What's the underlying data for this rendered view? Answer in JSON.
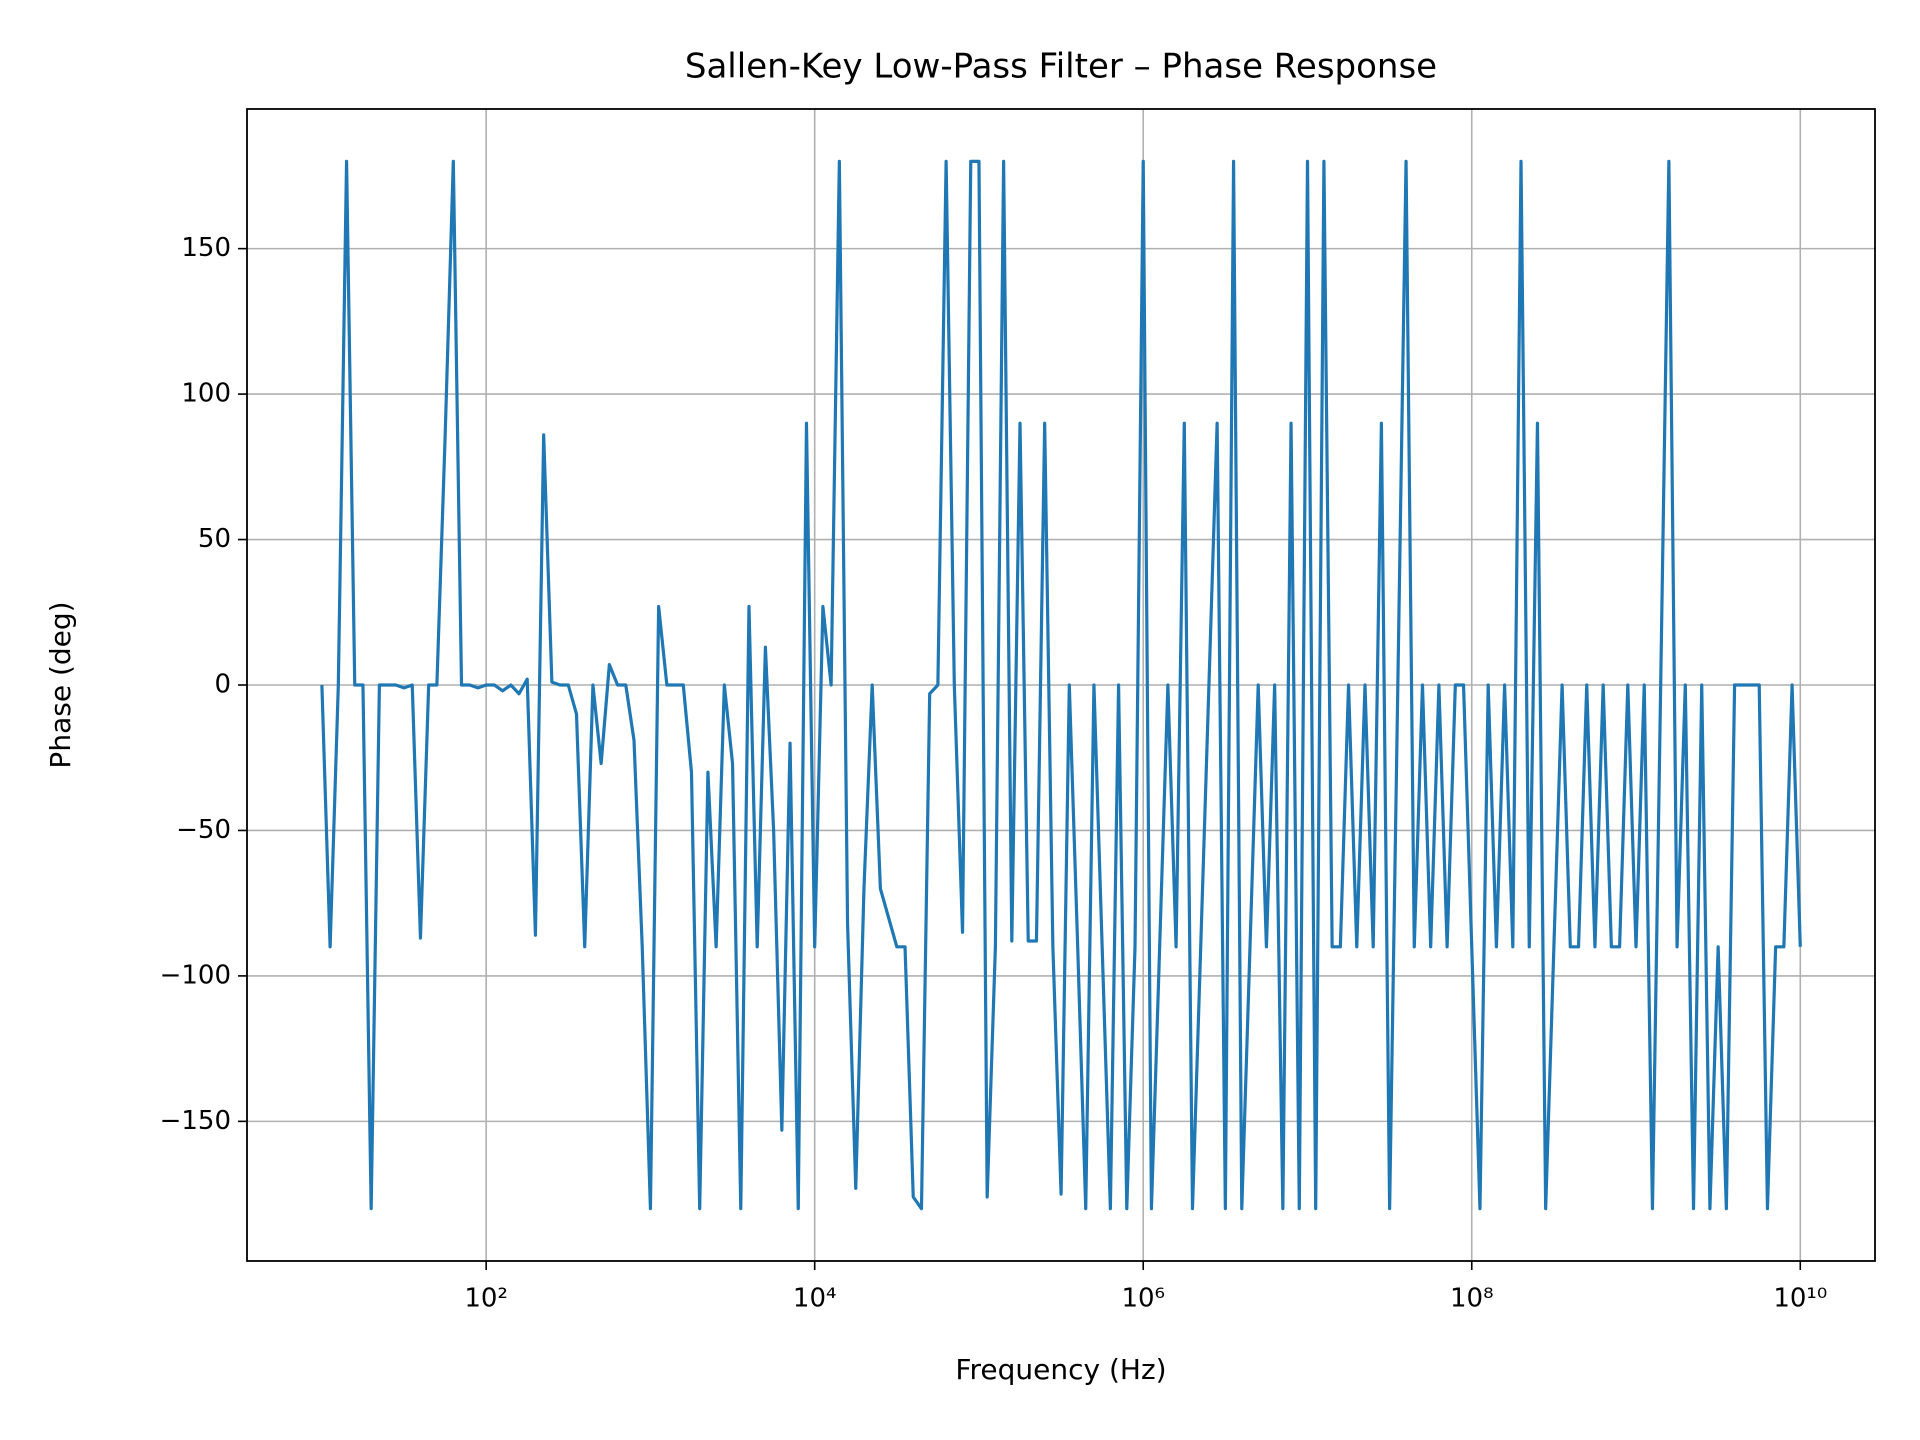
{
  "chart_data": {
    "type": "line",
    "title": "Sallen-Key Low-Pass Filter – Phase Response",
    "xlabel": "Frequency (Hz)",
    "ylabel": "Phase (deg)",
    "xscale": "log",
    "grid": true,
    "color": "#1f77b4",
    "xlim": [
      3.5,
      28500000000.0
    ],
    "ylim": [
      -198,
      198
    ],
    "xticks": [
      {
        "value": 100,
        "label": "10²"
      },
      {
        "value": 10000,
        "label": "10⁴"
      },
      {
        "value": 1000000,
        "label": "10⁶"
      },
      {
        "value": 100000000,
        "label": "10⁸"
      },
      {
        "value": 10000000000,
        "label": "10¹⁰"
      }
    ],
    "yticks": [
      {
        "value": -150,
        "label": "−150"
      },
      {
        "value": -100,
        "label": "−100"
      },
      {
        "value": -50,
        "label": "−50"
      },
      0,
      50,
      100,
      150
    ],
    "x": [
      10.0,
      11.22,
      12.59,
      14.13,
      15.85,
      17.78,
      19.95,
      22.39,
      25.12,
      28.18,
      31.62,
      35.48,
      39.81,
      44.67,
      50.12,
      56.23,
      63.1,
      70.79,
      79.43,
      89.13,
      100.0,
      112.2,
      125.9,
      141.3,
      158.5,
      177.8,
      199.5,
      223.9,
      251.2,
      281.8,
      316.2,
      354.8,
      398.1,
      446.7,
      501.2,
      562.3,
      631.0,
      707.9,
      794.3,
      891.3,
      1000.0,
      1122.0,
      1259.0,
      1413.0,
      1585.0,
      1778.0,
      1995.0,
      2239.0,
      2512.0,
      2818.0,
      3162.0,
      3548.0,
      3981.0,
      4467.0,
      5012.0,
      5623.0,
      6310.0,
      7079.0,
      7943.0,
      8913.0,
      10000.0,
      11220.0,
      12590.0,
      14130.0,
      15850.0,
      17780.0,
      19950.0,
      22390.0,
      25120.0,
      28180.0,
      31620.0,
      35480.0,
      39810.0,
      44670.0,
      50120.0,
      56230.0,
      63100.0,
      70790.0,
      79430.0,
      89130.0,
      100000.0,
      112200.0,
      125900.0,
      141300.0,
      158500.0,
      177800.0,
      199500.0,
      223900.0,
      251200.0,
      281800.0,
      316200.0,
      354800.0,
      398100.0,
      446700.0,
      501200.0,
      562300.0,
      631000.0,
      707900.0,
      794300.0,
      891300.0,
      1000000.0,
      1122000.0,
      1259000.0,
      1413000.0,
      1585000.0,
      1778000.0,
      1995000.0,
      2239000.0,
      2512000.0,
      2818000.0,
      3162000.0,
      3548000.0,
      3981000.0,
      4467000.0,
      5012000.0,
      5623000.0,
      6310000.0,
      7079000.0,
      7943000.0,
      8913000.0,
      10000000.0,
      11220000.0,
      12590000.0,
      14130000.0,
      15850000.0,
      17780000.0,
      19950000.0,
      22390000.0,
      25120000.0,
      28180000.0,
      31620000.0,
      35480000.0,
      39810000.0,
      44670000.0,
      50120000.0,
      56230000.0,
      63100000.0,
      70790000.0,
      79430000.0,
      89130000.0,
      100000000.0,
      112200000.0,
      125900000.0,
      141300000.0,
      158500000.0,
      177800000.0,
      199500000.0,
      223900000.0,
      251200000.0,
      281800000.0,
      316200000.0,
      354800000.0,
      398100000.0,
      446700000.0,
      501200000.0,
      562300000.0,
      631000000.0,
      707900000.0,
      794300000.0,
      891300000.0,
      1000000000.0,
      1122000000.0,
      1259000000.0,
      1413000000.0,
      1585000000.0,
      1778000000.0,
      1995000000.0,
      2239000000.0,
      2512000000.0,
      2818000000.0,
      3162000000.0,
      3548000000.0,
      3981000000.0,
      4467000000.0,
      5012000000.0,
      5623000000.0,
      6310000000.0,
      7079000000.0,
      7943000000.0,
      8913000000.0,
      10000000000.0
    ],
    "values": [
      0,
      -90,
      0,
      180,
      0,
      0,
      -180,
      0,
      0,
      0,
      -1,
      0,
      -87,
      0,
      0,
      85,
      180,
      0,
      0,
      -1,
      0,
      0,
      -2,
      0,
      -3,
      2,
      -86,
      86,
      1,
      0,
      0,
      -10,
      -90,
      0,
      -27,
      7,
      0,
      0,
      -19,
      -90,
      -180,
      27,
      0,
      0,
      0,
      -30,
      -180,
      -30,
      -90,
      0,
      -27,
      -180,
      27,
      -90,
      13,
      -50,
      -153,
      -20,
      -180,
      90,
      -90,
      27,
      0,
      180,
      -82,
      -173,
      -70,
      0,
      -70,
      -80,
      -90,
      -90,
      -176,
      -180,
      -3,
      0,
      180,
      0,
      -85,
      180,
      180,
      -176,
      -90,
      180,
      -88,
      90,
      -88,
      -88,
      90,
      -90,
      -175,
      0,
      -88,
      -180,
      0,
      -90,
      -180,
      0,
      -180,
      -90,
      180,
      -180,
      -90,
      0,
      -90,
      90,
      -180,
      -90,
      0,
      90,
      -180,
      180,
      -180,
      -90,
      0,
      -90,
      0,
      -180,
      90,
      -180,
      180,
      -180,
      180,
      -90,
      -90,
      0,
      -90,
      0,
      -90,
      90,
      -180,
      0,
      180,
      -90,
      0,
      -90,
      0,
      -90,
      0,
      0,
      -90,
      -180,
      0,
      -90,
      0,
      -90,
      180,
      -90,
      90,
      -180,
      -90,
      0,
      -90,
      -90,
      0,
      -90,
      0,
      -90,
      -90,
      0,
      -90,
      0,
      -180,
      0,
      180,
      -90,
      0,
      -180,
      0,
      -180,
      -90,
      -180,
      0,
      0,
      0,
      0,
      -180,
      -90,
      -90,
      0,
      -90
    ]
  }
}
